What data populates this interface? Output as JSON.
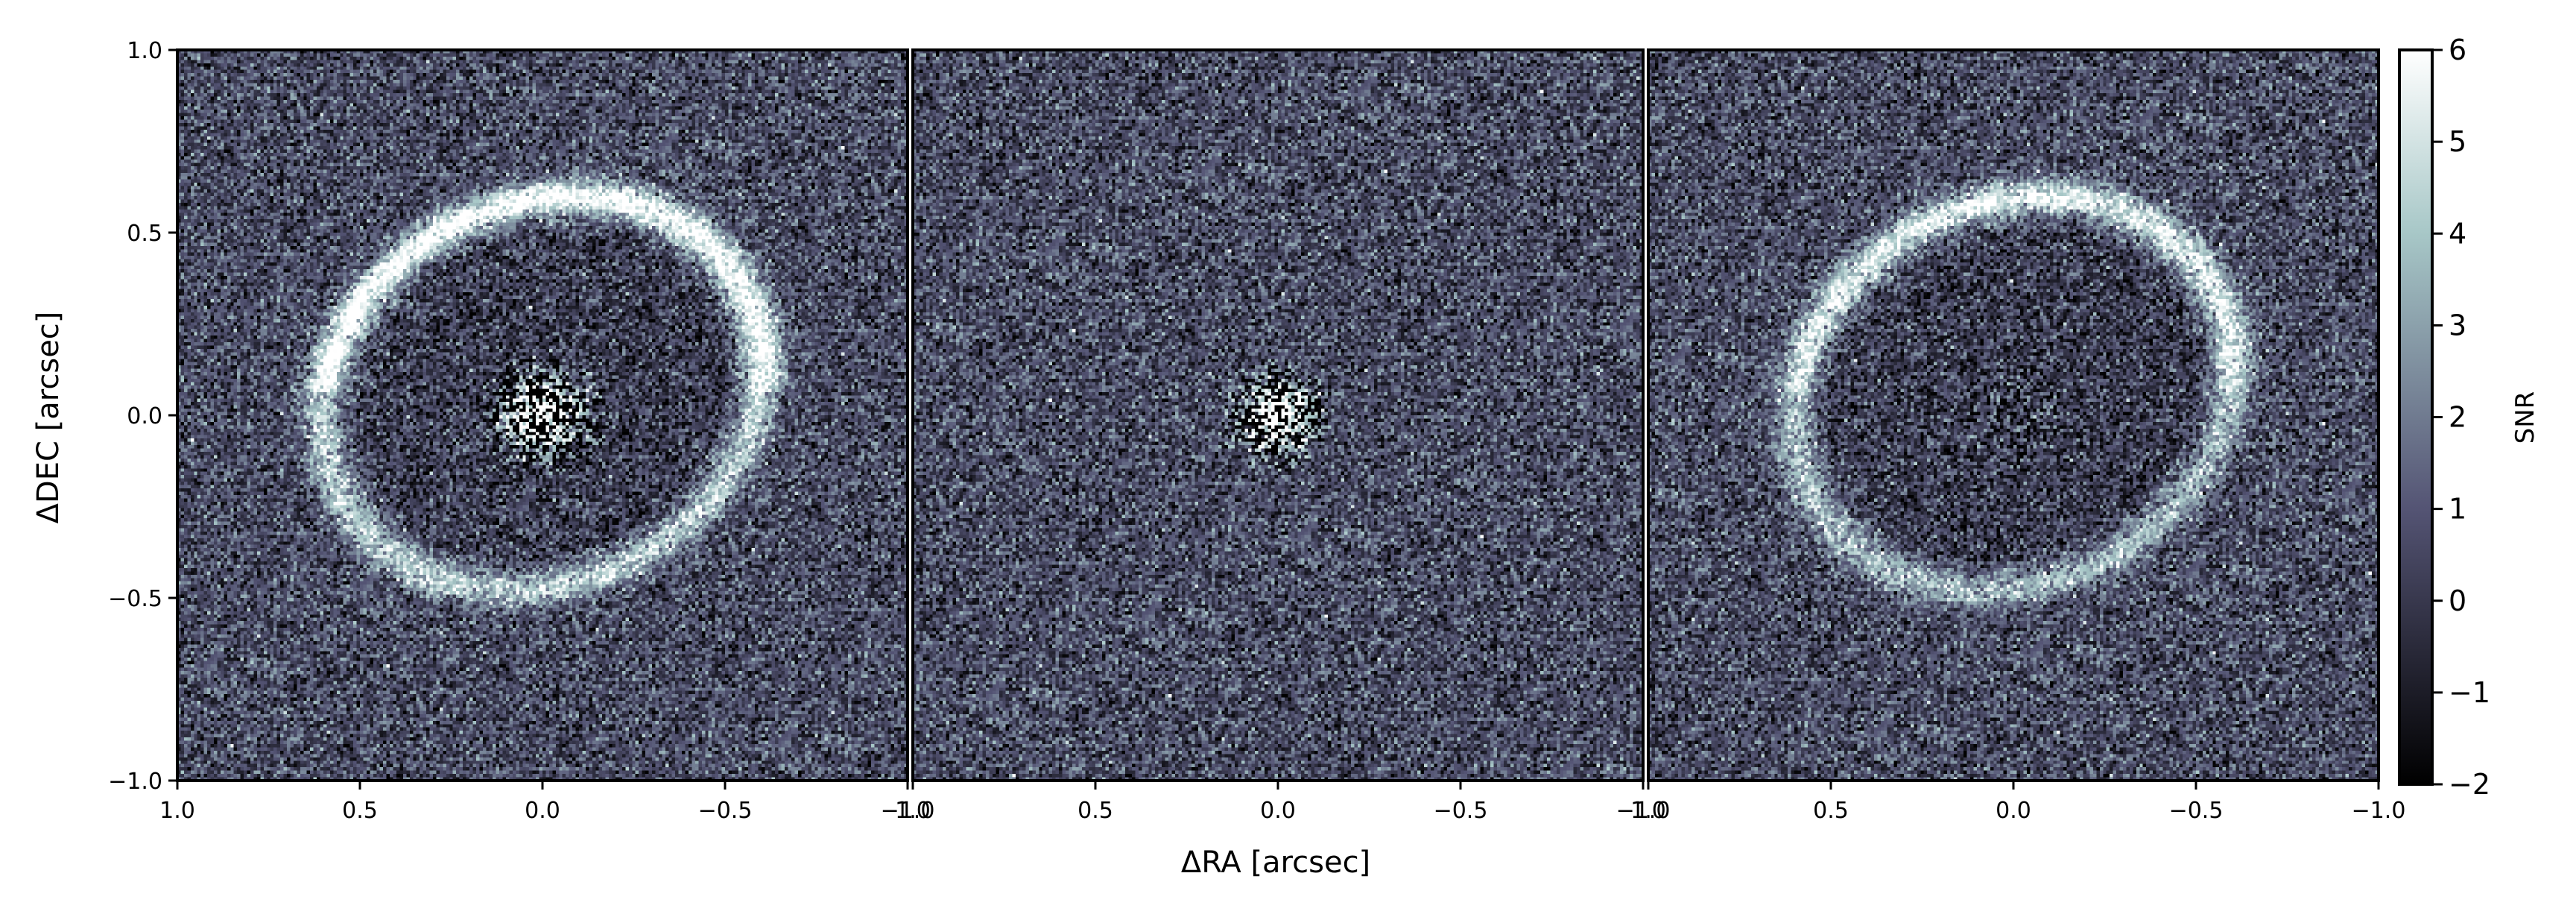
{
  "chart_data": {
    "type": "heatmap",
    "colormap": "bone",
    "shared_axes": {
      "xlabel": "ΔRA [arcsec]",
      "ylabel": "ΔDEC [arcsec]",
      "xlim": [
        1.0,
        -1.0
      ],
      "ylim": [
        -1.0,
        1.0
      ],
      "xticks": [
        1.0,
        0.5,
        0.0,
        -0.5,
        -1.0
      ],
      "xtick_labels": [
        "1.0",
        "0.5",
        "0.0",
        "−0.5",
        "−1.0"
      ],
      "yticks": [
        1.0,
        0.5,
        0.0,
        -0.5,
        -1.0
      ],
      "ytick_labels": [
        "1.0",
        "0.5",
        "0.0",
        "−0.5",
        "−1.0"
      ]
    },
    "panels": [
      {
        "description": "Disk ring with bright residual at centre",
        "ring": {
          "a": 0.62,
          "b": 0.52,
          "angle_deg": -25,
          "cx": 0.0,
          "cy": 0.06,
          "peak_snr": 6
        },
        "core": {
          "radius": 0.18,
          "strength": 8
        }
      },
      {
        "description": "Noise map with central residual",
        "ring": null,
        "core": {
          "radius": 0.16,
          "strength": 8
        }
      },
      {
        "description": "Disk ring, centre residual removed",
        "ring": {
          "a": 0.62,
          "b": 0.52,
          "angle_deg": -25,
          "cx": 0.0,
          "cy": 0.06,
          "peak_snr": 5
        },
        "core": {
          "radius": 0.14,
          "strength": 1.2
        }
      }
    ],
    "colorbar": {
      "label": "SNR",
      "vmin": -2,
      "vmax": 6,
      "ticks": [
        6,
        5,
        4,
        3,
        2,
        1,
        0,
        -1,
        -2
      ],
      "tick_labels": [
        "6",
        "5",
        "4",
        "3",
        "2",
        "1",
        "0",
        "−1",
        "−2"
      ]
    }
  }
}
